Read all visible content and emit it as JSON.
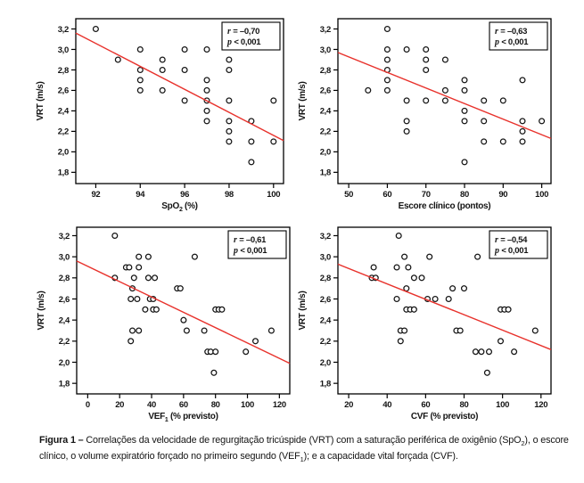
{
  "figure": {
    "colors": {
      "trend": "#e8322c",
      "point_stroke": "#141414",
      "axis": "#000000",
      "text": "#141414"
    },
    "caption": {
      "label": "Figura 1 –",
      "part1": " Correlações da velocidade de regurgitação tricúspide (VRT) com a saturação periférica de oxigênio (SpO",
      "sub1": "2",
      "part2": "), o escore clínico, o volume expiratório forçado no primeiro segundo (VEF",
      "sub2": "1",
      "part3": "); e a capacidade vital forçada (CVF)."
    }
  },
  "chart_data": [
    {
      "id": "spo2",
      "type": "scatter",
      "title": "",
      "ylabel": "VRT (m/s)",
      "xlabel_parts": [
        {
          "t": "SpO"
        },
        {
          "t": "2",
          "sub": true
        },
        {
          "t": " (%)"
        }
      ],
      "xlim": [
        91.1,
        100.45
      ],
      "ylim": [
        1.69,
        3.3
      ],
      "xticks": [
        92,
        94,
        96,
        98,
        100
      ],
      "xtick_labels": [
        "92",
        "94",
        "96",
        "98",
        "100"
      ],
      "yticks": [
        1.8,
        2.0,
        2.2,
        2.4,
        2.6,
        2.8,
        3.0,
        3.2
      ],
      "ytick_labels": [
        "1,8",
        "2,0",
        "2,2",
        "2,4",
        "2,6",
        "2,8",
        "3,0",
        "3,2"
      ],
      "grid": false,
      "legend": false,
      "annotation": {
        "var1": "r",
        "rest1": " = –0,70",
        "var2": "p",
        "rest2": " < 0,001"
      },
      "trendline": {
        "x1": 91.1,
        "y1": 3.16,
        "x2": 100.45,
        "y2": 2.11
      },
      "points": [
        [
          92,
          3.2
        ],
        [
          93,
          2.9
        ],
        [
          94,
          3.0
        ],
        [
          94,
          2.8
        ],
        [
          94,
          2.7
        ],
        [
          94,
          2.6
        ],
        [
          95,
          2.9
        ],
        [
          95,
          2.8
        ],
        [
          95,
          2.6
        ],
        [
          96,
          3.0
        ],
        [
          96,
          2.8
        ],
        [
          96,
          2.5
        ],
        [
          97,
          3.0
        ],
        [
          97,
          2.7
        ],
        [
          97,
          2.6
        ],
        [
          97,
          2.5
        ],
        [
          97,
          2.4
        ],
        [
          97,
          2.3
        ],
        [
          98,
          2.9
        ],
        [
          98,
          2.8
        ],
        [
          98,
          2.5
        ],
        [
          98,
          2.3
        ],
        [
          98,
          2.2
        ],
        [
          98,
          2.1
        ],
        [
          99,
          2.3
        ],
        [
          99,
          2.1
        ],
        [
          99,
          1.9
        ],
        [
          100,
          2.5
        ],
        [
          100,
          2.1
        ]
      ]
    },
    {
      "id": "escore",
      "type": "scatter",
      "title": "",
      "ylabel": "VRT (m/s)",
      "xlabel_parts": [
        {
          "t": "Escore clínico (pontos)"
        }
      ],
      "xlim": [
        47.2,
        102.4
      ],
      "ylim": [
        1.69,
        3.3
      ],
      "xticks": [
        50,
        60,
        70,
        80,
        90,
        100
      ],
      "xtick_labels": [
        "50",
        "60",
        "70",
        "80",
        "90",
        "100"
      ],
      "yticks": [
        1.8,
        2.0,
        2.2,
        2.4,
        2.6,
        2.8,
        3.0,
        3.2
      ],
      "ytick_labels": [
        "1,8",
        "2,0",
        "2,2",
        "2,4",
        "2,6",
        "2,8",
        "3,0",
        "3,2"
      ],
      "grid": false,
      "legend": false,
      "annotation": {
        "var1": "r",
        "rest1": " = –0,63",
        "var2": "p",
        "rest2": " < 0,001"
      },
      "trendline": {
        "x1": 47.2,
        "y1": 2.97,
        "x2": 102.4,
        "y2": 2.13
      },
      "points": [
        [
          55,
          2.6
        ],
        [
          60,
          3.2
        ],
        [
          60,
          3.0
        ],
        [
          60,
          2.9
        ],
        [
          60,
          2.8
        ],
        [
          60,
          2.7
        ],
        [
          60,
          2.6
        ],
        [
          65,
          3.0
        ],
        [
          65,
          2.5
        ],
        [
          65,
          2.3
        ],
        [
          65,
          2.2
        ],
        [
          70,
          3.0
        ],
        [
          70,
          2.9
        ],
        [
          70,
          2.8
        ],
        [
          70,
          2.5
        ],
        [
          75,
          2.9
        ],
        [
          75,
          2.6
        ],
        [
          75,
          2.5
        ],
        [
          80,
          2.7
        ],
        [
          80,
          2.6
        ],
        [
          80,
          2.4
        ],
        [
          80,
          2.3
        ],
        [
          80,
          1.9
        ],
        [
          85,
          2.5
        ],
        [
          85,
          2.3
        ],
        [
          85,
          2.1
        ],
        [
          90,
          2.5
        ],
        [
          90,
          2.1
        ],
        [
          95,
          2.7
        ],
        [
          95,
          2.3
        ],
        [
          95,
          2.2
        ],
        [
          95,
          2.1
        ],
        [
          100,
          2.3
        ]
      ]
    },
    {
      "id": "vef1",
      "type": "scatter",
      "title": "",
      "ylabel": "VRT (m/s)",
      "xlabel_parts": [
        {
          "t": "VEF"
        },
        {
          "t": "1",
          "sub": true
        },
        {
          "t": " (% previsto)"
        }
      ],
      "xlim": [
        -6.9,
        126.5
      ],
      "ylim": [
        1.7,
        3.28
      ],
      "xticks": [
        0,
        20,
        40,
        60,
        80,
        100,
        120
      ],
      "xtick_labels": [
        "0",
        "20",
        "40",
        "60",
        "80",
        "100",
        "120"
      ],
      "yticks": [
        1.8,
        2.0,
        2.2,
        2.4,
        2.6,
        2.8,
        3.0,
        3.2
      ],
      "ytick_labels": [
        "1,8",
        "2,0",
        "2,2",
        "2,4",
        "2,6",
        "2,8",
        "3,0",
        "3,2"
      ],
      "grid": false,
      "legend": false,
      "annotation": {
        "var1": "r",
        "rest1": " = –0,61",
        "var2": "p",
        "rest2": " < 0,001"
      },
      "trendline": {
        "x1": -6.9,
        "y1": 2.96,
        "x2": 126.5,
        "y2": 1.99
      },
      "points": [
        [
          17,
          3.2
        ],
        [
          32,
          3.0
        ],
        [
          38,
          3.0
        ],
        [
          67,
          3.0
        ],
        [
          24,
          2.9
        ],
        [
          26,
          2.9
        ],
        [
          32,
          2.9
        ],
        [
          17,
          2.8
        ],
        [
          29,
          2.8
        ],
        [
          38,
          2.8
        ],
        [
          42,
          2.8
        ],
        [
          28,
          2.7
        ],
        [
          56,
          2.7
        ],
        [
          58,
          2.7
        ],
        [
          27,
          2.6
        ],
        [
          31,
          2.6
        ],
        [
          39,
          2.6
        ],
        [
          41,
          2.6
        ],
        [
          36,
          2.5
        ],
        [
          41,
          2.5
        ],
        [
          43,
          2.5
        ],
        [
          80,
          2.5
        ],
        [
          82,
          2.5
        ],
        [
          84,
          2.5
        ],
        [
          60,
          2.4
        ],
        [
          28,
          2.3
        ],
        [
          32,
          2.3
        ],
        [
          62,
          2.3
        ],
        [
          73,
          2.3
        ],
        [
          115,
          2.3
        ],
        [
          27,
          2.2
        ],
        [
          105,
          2.2
        ],
        [
          75,
          2.1
        ],
        [
          77,
          2.1
        ],
        [
          80,
          2.1
        ],
        [
          99,
          2.1
        ],
        [
          79,
          1.9
        ]
      ]
    },
    {
      "id": "cvf",
      "type": "scatter",
      "title": "",
      "ylabel": "VRT (m/s)",
      "xlabel_parts": [
        {
          "t": "CVF (% previsto)"
        }
      ],
      "xlim": [
        14.4,
        125.2
      ],
      "ylim": [
        1.7,
        3.28
      ],
      "xticks": [
        20,
        40,
        60,
        80,
        100,
        120
      ],
      "xtick_labels": [
        "20",
        "40",
        "60",
        "80",
        "100",
        "120"
      ],
      "yticks": [
        1.8,
        2.0,
        2.2,
        2.4,
        2.6,
        2.8,
        3.0,
        3.2
      ],
      "ytick_labels": [
        "1,8",
        "2,0",
        "2,2",
        "2,4",
        "2,6",
        "2,8",
        "3,0",
        "3,2"
      ],
      "grid": false,
      "legend": false,
      "annotation": {
        "var1": "r",
        "rest1": " = –0,54",
        "var2": "p",
        "rest2": " < 0,001"
      },
      "trendline": {
        "x1": 14.4,
        "y1": 2.93,
        "x2": 125.2,
        "y2": 2.12
      },
      "points": [
        [
          46,
          3.2
        ],
        [
          49,
          3.0
        ],
        [
          62,
          3.0
        ],
        [
          87,
          3.0
        ],
        [
          33,
          2.9
        ],
        [
          45,
          2.9
        ],
        [
          51,
          2.9
        ],
        [
          32,
          2.8
        ],
        [
          34,
          2.8
        ],
        [
          54,
          2.8
        ],
        [
          58,
          2.8
        ],
        [
          50,
          2.7
        ],
        [
          74,
          2.7
        ],
        [
          80,
          2.7
        ],
        [
          45,
          2.6
        ],
        [
          61,
          2.6
        ],
        [
          65,
          2.6
        ],
        [
          72,
          2.6
        ],
        [
          50,
          2.5
        ],
        [
          52,
          2.5
        ],
        [
          54,
          2.5
        ],
        [
          99,
          2.5
        ],
        [
          101,
          2.5
        ],
        [
          103,
          2.5
        ],
        [
          47,
          2.3
        ],
        [
          49,
          2.3
        ],
        [
          76,
          2.3
        ],
        [
          78,
          2.3
        ],
        [
          117,
          2.3
        ],
        [
          47,
          2.2
        ],
        [
          99,
          2.2
        ],
        [
          86,
          2.1
        ],
        [
          89,
          2.1
        ],
        [
          93,
          2.1
        ],
        [
          106,
          2.1
        ],
        [
          92,
          1.9
        ]
      ]
    }
  ]
}
